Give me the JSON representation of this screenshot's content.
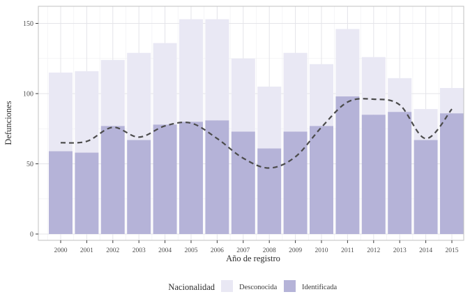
{
  "chart_data": {
    "type": "bar",
    "stacked": true,
    "title": "",
    "xlabel": "Año de registro",
    "ylabel": "Defunciones",
    "categories": [
      "2000",
      "2001",
      "2002",
      "2003",
      "2004",
      "2005",
      "2006",
      "2007",
      "2008",
      "2009",
      "2010",
      "2011",
      "2012",
      "2013",
      "2014",
      "2015"
    ],
    "series": [
      {
        "name": "Identificada",
        "color": "#b5b3d8",
        "values": [
          59,
          58,
          77,
          67,
          78,
          80,
          81,
          73,
          61,
          73,
          77,
          98,
          85,
          87,
          67,
          86
        ]
      },
      {
        "name": "Desconocida",
        "color": "#e9e8f4",
        "values": [
          56,
          58,
          47,
          62,
          58,
          73,
          72,
          52,
          44,
          56,
          44,
          48,
          41,
          24,
          22,
          18
        ]
      }
    ],
    "totals": [
      115,
      116,
      124,
      129,
      136,
      153,
      153,
      125,
      105,
      129,
      121,
      146,
      126,
      111,
      89,
      104
    ],
    "trend": {
      "name": "smoothed-trend",
      "style": "dashed",
      "color": "#4b4b4b",
      "values": [
        65,
        66,
        76,
        69,
        77,
        79,
        68,
        54,
        47,
        55,
        76,
        94,
        96,
        92,
        68,
        89
      ]
    },
    "y_ticks": [
      0,
      50,
      100,
      150
    ],
    "ylim": [
      0,
      160
    ],
    "grid": true,
    "legend": {
      "title": "Nacionalidad",
      "position": "bottom",
      "items": [
        {
          "label": "Desconocida",
          "color": "#e9e8f4"
        },
        {
          "label": "Identificada",
          "color": "#b5b3d8"
        }
      ]
    }
  }
}
